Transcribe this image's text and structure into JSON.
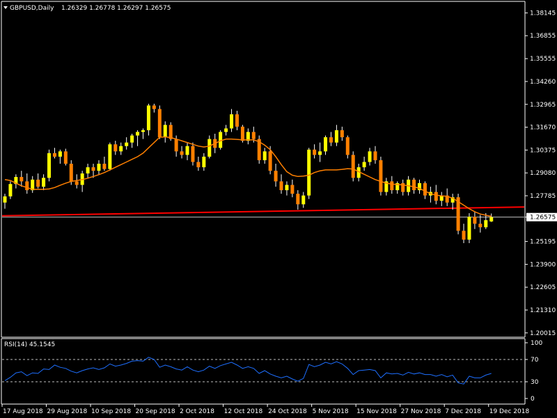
{
  "header": {
    "symbol": "GBPUSD,Daily",
    "ohlc": "1.26329 1.26778 1.26297 1.26575"
  },
  "rsi_header": "RSI(14) 45.1545",
  "colors": {
    "background": "#000000",
    "frame": "#ffffff",
    "bull_candle": "#ffff00",
    "bear_candle": "#ff8000",
    "ma_line": "#ff8000",
    "support_line": "#ff0000",
    "current_price_line": "#c0c0c0",
    "rsi_line": "#1e6fff",
    "rsi_levels": "#c0c0c0"
  },
  "chart_data": [
    {
      "type": "candlestick",
      "title": "GBPUSD,Daily",
      "price_axis_ticks": [
        "1.38145",
        "1.36855",
        "1.35555",
        "1.34260",
        "1.32965",
        "1.31670",
        "1.30375",
        "1.29080",
        "1.27785",
        "1.26575",
        "1.25195",
        "1.23900",
        "1.22605",
        "1.21310",
        "1.20015"
      ],
      "price_axis_values": [
        1.38145,
        1.36855,
        1.35555,
        1.3426,
        1.32965,
        1.3167,
        1.30375,
        1.2908,
        1.27785,
        1.26575,
        1.25195,
        1.239,
        1.22605,
        1.2131,
        1.20015
      ],
      "ylim": [
        1.1985,
        1.3872
      ],
      "date_axis_ticks": [
        "17 Aug 2018",
        "29 Aug 2018",
        "10 Sep 2018",
        "20 Sep 2018",
        "2 Oct 2018",
        "12 Oct 2018",
        "24 Oct 2018",
        "5 Nov 2018",
        "15 Nov 2018",
        "27 Nov 2018",
        "7 Dec 2018",
        "19 Dec 2018"
      ],
      "date_axis_bar_index": [
        0,
        8,
        16,
        24,
        32,
        40,
        48,
        56,
        64,
        72,
        80,
        88
      ],
      "current_price": 1.26575,
      "support_line": {
        "start": 1.2665,
        "end": 1.2715
      },
      "moving_average": [
        1.287,
        1.2865,
        1.285,
        1.2835,
        1.2825,
        1.2815,
        1.2815,
        1.2815,
        1.2817,
        1.2825,
        1.2838,
        1.285,
        1.286,
        1.2865,
        1.287,
        1.2878,
        1.2888,
        1.2898,
        1.291,
        1.2925,
        1.294,
        1.2955,
        1.297,
        1.2985,
        1.3,
        1.302,
        1.305,
        1.308,
        1.311,
        1.3112,
        1.3108,
        1.31,
        1.309,
        1.308,
        1.307,
        1.306,
        1.3055,
        1.306,
        1.3075,
        1.309,
        1.31,
        1.31,
        1.3098,
        1.3095,
        1.3095,
        1.3095,
        1.3085,
        1.3065,
        1.304,
        1.3,
        1.2955,
        1.2915,
        1.2895,
        1.2888,
        1.289,
        1.2895,
        1.291,
        1.292,
        1.2925,
        1.2925,
        1.2925,
        1.2928,
        1.2932,
        1.293,
        1.2915,
        1.29,
        1.2885,
        1.287,
        1.286,
        1.285,
        1.2845,
        1.2842,
        1.284,
        1.2835,
        1.283,
        1.282,
        1.2805,
        1.279,
        1.2782,
        1.2778,
        1.2775,
        1.2765,
        1.2745,
        1.2725,
        1.2705,
        1.2688,
        1.2675,
        1.2668,
        1.2662
      ],
      "candles": [
        {
          "o": 1.274,
          "h": 1.279,
          "l": 1.2705,
          "c": 1.2775
        },
        {
          "o": 1.2775,
          "h": 1.286,
          "l": 1.276,
          "c": 1.2845
        },
        {
          "o": 1.2845,
          "h": 1.29,
          "l": 1.282,
          "c": 1.2885
        },
        {
          "o": 1.2885,
          "h": 1.292,
          "l": 1.283,
          "c": 1.286
        },
        {
          "o": 1.286,
          "h": 1.2905,
          "l": 1.279,
          "c": 1.281
        },
        {
          "o": 1.281,
          "h": 1.289,
          "l": 1.2795,
          "c": 1.287
        },
        {
          "o": 1.287,
          "h": 1.2905,
          "l": 1.282,
          "c": 1.283
        },
        {
          "o": 1.283,
          "h": 1.29,
          "l": 1.281,
          "c": 1.288
        },
        {
          "o": 1.288,
          "h": 1.304,
          "l": 1.286,
          "c": 1.302
        },
        {
          "o": 1.302,
          "h": 1.305,
          "l": 1.299,
          "c": 1.3
        },
        {
          "o": 1.3,
          "h": 1.304,
          "l": 1.296,
          "c": 1.303
        },
        {
          "o": 1.303,
          "h": 1.3045,
          "l": 1.295,
          "c": 1.296
        },
        {
          "o": 1.296,
          "h": 1.298,
          "l": 1.284,
          "c": 1.286
        },
        {
          "o": 1.286,
          "h": 1.29,
          "l": 1.282,
          "c": 1.284
        },
        {
          "o": 1.284,
          "h": 1.292,
          "l": 1.28,
          "c": 1.2905
        },
        {
          "o": 1.2905,
          "h": 1.296,
          "l": 1.288,
          "c": 1.294
        },
        {
          "o": 1.294,
          "h": 1.296,
          "l": 1.288,
          "c": 1.292
        },
        {
          "o": 1.292,
          "h": 1.298,
          "l": 1.29,
          "c": 1.296
        },
        {
          "o": 1.296,
          "h": 1.3,
          "l": 1.292,
          "c": 1.293
        },
        {
          "o": 1.293,
          "h": 1.308,
          "l": 1.292,
          "c": 1.307
        },
        {
          "o": 1.307,
          "h": 1.309,
          "l": 1.301,
          "c": 1.303
        },
        {
          "o": 1.303,
          "h": 1.308,
          "l": 1.301,
          "c": 1.306
        },
        {
          "o": 1.306,
          "h": 1.311,
          "l": 1.304,
          "c": 1.308
        },
        {
          "o": 1.308,
          "h": 1.313,
          "l": 1.305,
          "c": 1.312
        },
        {
          "o": 1.312,
          "h": 1.315,
          "l": 1.306,
          "c": 1.314
        },
        {
          "o": 1.314,
          "h": 1.316,
          "l": 1.31,
          "c": 1.315
        },
        {
          "o": 1.315,
          "h": 1.33,
          "l": 1.312,
          "c": 1.329
        },
        {
          "o": 1.329,
          "h": 1.33,
          "l": 1.325,
          "c": 1.327
        },
        {
          "o": 1.327,
          "h": 1.329,
          "l": 1.31,
          "c": 1.311
        },
        {
          "o": 1.311,
          "h": 1.32,
          "l": 1.308,
          "c": 1.318
        },
        {
          "o": 1.318,
          "h": 1.3195,
          "l": 1.309,
          "c": 1.31
        },
        {
          "o": 1.31,
          "h": 1.312,
          "l": 1.3,
          "c": 1.303
        },
        {
          "o": 1.303,
          "h": 1.306,
          "l": 1.299,
          "c": 1.301
        },
        {
          "o": 1.301,
          "h": 1.308,
          "l": 1.298,
          "c": 1.306
        },
        {
          "o": 1.306,
          "h": 1.308,
          "l": 1.295,
          "c": 1.297
        },
        {
          "o": 1.297,
          "h": 1.3,
          "l": 1.292,
          "c": 1.294
        },
        {
          "o": 1.294,
          "h": 1.302,
          "l": 1.292,
          "c": 1.3
        },
        {
          "o": 1.3,
          "h": 1.312,
          "l": 1.299,
          "c": 1.31
        },
        {
          "o": 1.31,
          "h": 1.313,
          "l": 1.302,
          "c": 1.305
        },
        {
          "o": 1.305,
          "h": 1.315,
          "l": 1.304,
          "c": 1.314
        },
        {
          "o": 1.314,
          "h": 1.318,
          "l": 1.312,
          "c": 1.316
        },
        {
          "o": 1.316,
          "h": 1.327,
          "l": 1.314,
          "c": 1.324
        },
        {
          "o": 1.324,
          "h": 1.326,
          "l": 1.315,
          "c": 1.317
        },
        {
          "o": 1.317,
          "h": 1.318,
          "l": 1.308,
          "c": 1.309
        },
        {
          "o": 1.309,
          "h": 1.316,
          "l": 1.307,
          "c": 1.314
        },
        {
          "o": 1.314,
          "h": 1.317,
          "l": 1.308,
          "c": 1.31
        },
        {
          "o": 1.31,
          "h": 1.312,
          "l": 1.296,
          "c": 1.298
        },
        {
          "o": 1.298,
          "h": 1.305,
          "l": 1.296,
          "c": 1.303
        },
        {
          "o": 1.303,
          "h": 1.306,
          "l": 1.29,
          "c": 1.292
        },
        {
          "o": 1.292,
          "h": 1.296,
          "l": 1.283,
          "c": 1.286
        },
        {
          "o": 1.286,
          "h": 1.29,
          "l": 1.279,
          "c": 1.281
        },
        {
          "o": 1.281,
          "h": 1.286,
          "l": 1.278,
          "c": 1.284
        },
        {
          "o": 1.284,
          "h": 1.287,
          "l": 1.277,
          "c": 1.279
        },
        {
          "o": 1.279,
          "h": 1.281,
          "l": 1.27,
          "c": 1.273
        },
        {
          "o": 1.273,
          "h": 1.28,
          "l": 1.271,
          "c": 1.278
        },
        {
          "o": 1.278,
          "h": 1.305,
          "l": 1.276,
          "c": 1.304
        },
        {
          "o": 1.304,
          "h": 1.307,
          "l": 1.299,
          "c": 1.301
        },
        {
          "o": 1.301,
          "h": 1.308,
          "l": 1.297,
          "c": 1.303
        },
        {
          "o": 1.303,
          "h": 1.312,
          "l": 1.301,
          "c": 1.311
        },
        {
          "o": 1.311,
          "h": 1.314,
          "l": 1.306,
          "c": 1.308
        },
        {
          "o": 1.308,
          "h": 1.318,
          "l": 1.306,
          "c": 1.315
        },
        {
          "o": 1.315,
          "h": 1.317,
          "l": 1.309,
          "c": 1.311
        },
        {
          "o": 1.311,
          "h": 1.312,
          "l": 1.299,
          "c": 1.301
        },
        {
          "o": 1.301,
          "h": 1.303,
          "l": 1.286,
          "c": 1.288
        },
        {
          "o": 1.288,
          "h": 1.296,
          "l": 1.286,
          "c": 1.294
        },
        {
          "o": 1.294,
          "h": 1.3,
          "l": 1.292,
          "c": 1.297
        },
        {
          "o": 1.297,
          "h": 1.305,
          "l": 1.295,
          "c": 1.303
        },
        {
          "o": 1.303,
          "h": 1.306,
          "l": 1.296,
          "c": 1.298
        },
        {
          "o": 1.298,
          "h": 1.3,
          "l": 1.278,
          "c": 1.28
        },
        {
          "o": 1.28,
          "h": 1.288,
          "l": 1.278,
          "c": 1.286
        },
        {
          "o": 1.286,
          "h": 1.289,
          "l": 1.279,
          "c": 1.281
        },
        {
          "o": 1.281,
          "h": 1.286,
          "l": 1.279,
          "c": 1.285
        },
        {
          "o": 1.285,
          "h": 1.287,
          "l": 1.278,
          "c": 1.28
        },
        {
          "o": 1.28,
          "h": 1.289,
          "l": 1.278,
          "c": 1.287
        },
        {
          "o": 1.287,
          "h": 1.288,
          "l": 1.279,
          "c": 1.281
        },
        {
          "o": 1.281,
          "h": 1.287,
          "l": 1.279,
          "c": 1.285
        },
        {
          "o": 1.285,
          "h": 1.286,
          "l": 1.276,
          "c": 1.278
        },
        {
          "o": 1.278,
          "h": 1.283,
          "l": 1.274,
          "c": 1.28
        },
        {
          "o": 1.28,
          "h": 1.284,
          "l": 1.273,
          "c": 1.275
        },
        {
          "o": 1.275,
          "h": 1.28,
          "l": 1.272,
          "c": 1.278
        },
        {
          "o": 1.278,
          "h": 1.282,
          "l": 1.272,
          "c": 1.274
        },
        {
          "o": 1.274,
          "h": 1.279,
          "l": 1.27,
          "c": 1.277
        },
        {
          "o": 1.277,
          "h": 1.279,
          "l": 1.256,
          "c": 1.258
        },
        {
          "o": 1.258,
          "h": 1.262,
          "l": 1.251,
          "c": 1.253
        },
        {
          "o": 1.253,
          "h": 1.268,
          "l": 1.251,
          "c": 1.266
        },
        {
          "o": 1.266,
          "h": 1.269,
          "l": 1.259,
          "c": 1.262
        },
        {
          "o": 1.262,
          "h": 1.267,
          "l": 1.257,
          "c": 1.26
        },
        {
          "o": 1.26,
          "h": 1.268,
          "l": 1.259,
          "c": 1.264
        },
        {
          "o": 1.2633,
          "h": 1.2678,
          "l": 1.263,
          "c": 1.26575
        }
      ]
    },
    {
      "type": "line",
      "title": "RSI(14) 45.1545",
      "axis_ticks": [
        "100",
        "70",
        "30",
        "0"
      ],
      "axis_values": [
        100,
        70,
        30,
        0
      ],
      "ylim": [
        0,
        100
      ],
      "levels": [
        70,
        30
      ],
      "values": [
        32,
        38,
        46,
        48,
        41,
        46,
        45,
        53,
        52,
        60,
        56,
        54,
        49,
        46,
        50,
        53,
        55,
        52,
        55,
        62,
        58,
        60,
        63,
        67,
        68,
        67,
        74,
        70,
        56,
        60,
        57,
        53,
        51,
        57,
        51,
        48,
        51,
        58,
        54,
        59,
        62,
        65,
        60,
        54,
        57,
        54,
        45,
        50,
        44,
        40,
        37,
        40,
        35,
        31,
        36,
        61,
        57,
        60,
        65,
        62,
        66,
        62,
        54,
        43,
        50,
        51,
        52,
        50,
        37,
        46,
        44,
        45,
        42,
        47,
        44,
        46,
        43,
        43,
        40,
        43,
        39,
        42,
        28,
        26,
        40,
        37,
        37,
        42,
        45
      ]
    }
  ]
}
